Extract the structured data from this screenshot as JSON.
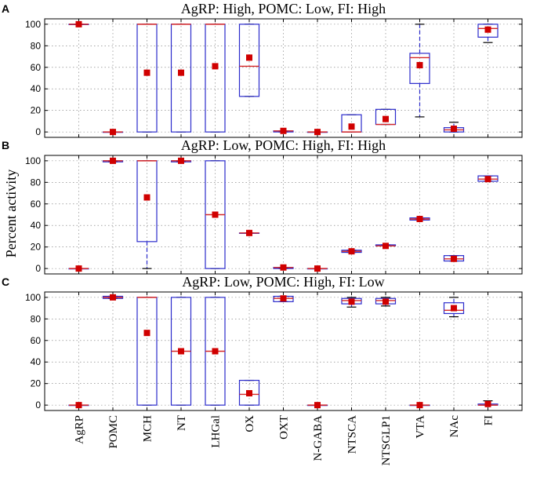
{
  "chart_data": {
    "type": "box",
    "categories": [
      "AgRP",
      "POMC",
      "MCH",
      "NT",
      "LHGal",
      "OX",
      "OXT",
      "N-GABA",
      "NTSCA",
      "NTSGLP1",
      "VTA",
      "NAc",
      "FI"
    ],
    "ylabel": "Percent activity",
    "ylim": [
      -5,
      105
    ],
    "yticks": [
      0,
      20,
      40,
      60,
      80,
      100
    ],
    "ytick_labels": [
      "0",
      "20",
      "40",
      "60",
      "80",
      "100"
    ],
    "panels": [
      {
        "letter": "A",
        "title": "AgRP: High, POMC: Low, FI: High",
        "boxes": [
          {
            "q1": 100,
            "q3": 100,
            "med": 100,
            "wlo": 100,
            "whi": 100,
            "mean": 100
          },
          {
            "q1": 0,
            "q3": 0,
            "med": 0,
            "wlo": 0,
            "whi": 0,
            "mean": 0
          },
          {
            "q1": 0,
            "q3": 100,
            "med": 100,
            "wlo": 0,
            "whi": 100,
            "mean": 55
          },
          {
            "q1": 0,
            "q3": 100,
            "med": 100,
            "wlo": 0,
            "whi": 100,
            "mean": 55
          },
          {
            "q1": 0,
            "q3": 100,
            "med": 100,
            "wlo": 0,
            "whi": 100,
            "mean": 61
          },
          {
            "q1": 33,
            "q3": 100,
            "med": 61,
            "wlo": 33,
            "whi": 100,
            "mean": 69
          },
          {
            "q1": 0,
            "q3": 1,
            "med": 1,
            "wlo": 0,
            "whi": 1,
            "mean": 1
          },
          {
            "q1": 0,
            "q3": 0,
            "med": 0,
            "wlo": 0,
            "whi": 0,
            "mean": 0
          },
          {
            "q1": 0,
            "q3": 16,
            "med": 0,
            "wlo": 0,
            "whi": 16,
            "mean": 5
          },
          {
            "q1": 7,
            "q3": 21,
            "med": 7,
            "wlo": 7,
            "whi": 21,
            "mean": 12
          },
          {
            "q1": 45,
            "q3": 73,
            "med": 69,
            "wlo": 14,
            "whi": 100,
            "mean": 62
          },
          {
            "q1": 0,
            "q3": 4,
            "med": 2,
            "wlo": 0,
            "whi": 9,
            "mean": 3
          },
          {
            "q1": 88,
            "q3": 100,
            "med": 96,
            "wlo": 83,
            "whi": 100,
            "mean": 95
          }
        ]
      },
      {
        "letter": "B",
        "title": "AgRP: Low, POMC: High, FI: High",
        "boxes": [
          {
            "q1": 0,
            "q3": 0,
            "med": 0,
            "wlo": 0,
            "whi": 0,
            "mean": 0
          },
          {
            "q1": 99,
            "q3": 100,
            "med": 100,
            "wlo": 99,
            "whi": 100,
            "mean": 100
          },
          {
            "q1": 25,
            "q3": 100,
            "med": 100,
            "wlo": 0,
            "whi": 100,
            "mean": 66
          },
          {
            "q1": 99,
            "q3": 100,
            "med": 100,
            "wlo": 99,
            "whi": 100,
            "mean": 100
          },
          {
            "q1": 0,
            "q3": 100,
            "med": 50,
            "wlo": 0,
            "whi": 100,
            "mean": 50
          },
          {
            "q1": 33,
            "q3": 33,
            "med": 33,
            "wlo": 33,
            "whi": 33,
            "mean": 33
          },
          {
            "q1": 0,
            "q3": 1,
            "med": 1,
            "wlo": 0,
            "whi": 1,
            "mean": 1
          },
          {
            "q1": 0,
            "q3": 0,
            "med": 0,
            "wlo": 0,
            "whi": 0,
            "mean": 0
          },
          {
            "q1": 15,
            "q3": 17,
            "med": 16,
            "wlo": 15,
            "whi": 17,
            "mean": 16
          },
          {
            "q1": 21,
            "q3": 22,
            "med": 21,
            "wlo": 21,
            "whi": 22,
            "mean": 21
          },
          {
            "q1": 45,
            "q3": 47,
            "med": 46,
            "wlo": 45,
            "whi": 47,
            "mean": 46
          },
          {
            "q1": 7,
            "q3": 12,
            "med": 9,
            "wlo": 7,
            "whi": 12,
            "mean": 9
          },
          {
            "q1": 81,
            "q3": 86,
            "med": 83,
            "wlo": 81,
            "whi": 86,
            "mean": 83
          }
        ]
      },
      {
        "letter": "C",
        "title": "AgRP: Low, POMC: High, FI: Low",
        "boxes": [
          {
            "q1": 0,
            "q3": 0,
            "med": 0,
            "wlo": 0,
            "whi": 0,
            "mean": 0
          },
          {
            "q1": 99,
            "q3": 101,
            "med": 100,
            "wlo": 99,
            "whi": 101,
            "mean": 100
          },
          {
            "q1": 0,
            "q3": 100,
            "med": 100,
            "wlo": 0,
            "whi": 100,
            "mean": 67
          },
          {
            "q1": 0,
            "q3": 100,
            "med": 50,
            "wlo": 0,
            "whi": 100,
            "mean": 50
          },
          {
            "q1": 0,
            "q3": 100,
            "med": 50,
            "wlo": 0,
            "whi": 100,
            "mean": 50
          },
          {
            "q1": 0,
            "q3": 23,
            "med": 10,
            "wlo": 0,
            "whi": 23,
            "mean": 11
          },
          {
            "q1": 96,
            "q3": 101,
            "med": 99,
            "wlo": 96,
            "whi": 101,
            "mean": 99
          },
          {
            "q1": 0,
            "q3": 0,
            "med": 0,
            "wlo": 0,
            "whi": 0,
            "mean": 0
          },
          {
            "q1": 94,
            "q3": 99,
            "med": 97,
            "wlo": 91,
            "whi": 100,
            "mean": 96
          },
          {
            "q1": 94,
            "q3": 99,
            "med": 97,
            "wlo": 92,
            "whi": 100,
            "mean": 96
          },
          {
            "q1": 0,
            "q3": 0,
            "med": 0,
            "wlo": 0,
            "whi": 0,
            "mean": 0
          },
          {
            "q1": 85,
            "q3": 95,
            "med": 88,
            "wlo": 82,
            "whi": 100,
            "mean": 90
          },
          {
            "q1": 0,
            "q3": 1,
            "med": 0,
            "wlo": 0,
            "whi": 4,
            "mean": 1
          }
        ]
      }
    ]
  }
}
